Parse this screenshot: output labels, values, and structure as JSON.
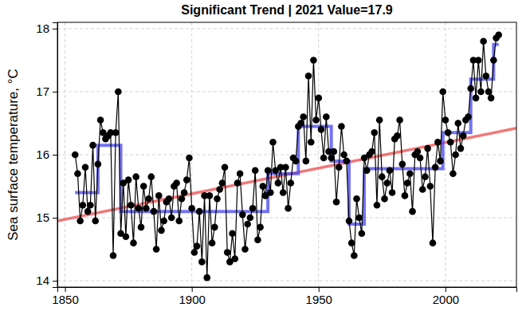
{
  "chart_data": {
    "type": "line",
    "title": "Significant Trend | 2021 Value=17.9",
    "ylabel": "Sea surface temperature, °C",
    "x": [
      1854,
      1855,
      1856,
      1857,
      1858,
      1859,
      1860,
      1861,
      1862,
      1863,
      1864,
      1865,
      1866,
      1867,
      1868,
      1869,
      1870,
      1871,
      1872,
      1873,
      1874,
      1875,
      1876,
      1877,
      1878,
      1879,
      1880,
      1881,
      1882,
      1883,
      1884,
      1885,
      1886,
      1887,
      1888,
      1889,
      1890,
      1891,
      1892,
      1893,
      1894,
      1895,
      1896,
      1897,
      1898,
      1899,
      1900,
      1901,
      1902,
      1903,
      1904,
      1905,
      1906,
      1907,
      1908,
      1909,
      1910,
      1911,
      1912,
      1913,
      1914,
      1915,
      1916,
      1917,
      1918,
      1919,
      1920,
      1921,
      1922,
      1923,
      1924,
      1925,
      1926,
      1927,
      1928,
      1929,
      1930,
      1931,
      1932,
      1933,
      1934,
      1935,
      1936,
      1937,
      1938,
      1939,
      1940,
      1941,
      1942,
      1943,
      1944,
      1945,
      1946,
      1947,
      1948,
      1949,
      1950,
      1951,
      1952,
      1953,
      1954,
      1955,
      1956,
      1957,
      1958,
      1959,
      1960,
      1961,
      1962,
      1963,
      1964,
      1965,
      1966,
      1967,
      1968,
      1969,
      1970,
      1971,
      1972,
      1973,
      1974,
      1975,
      1976,
      1977,
      1978,
      1979,
      1980,
      1981,
      1982,
      1983,
      1984,
      1985,
      1986,
      1987,
      1988,
      1989,
      1990,
      1991,
      1992,
      1993,
      1994,
      1995,
      1996,
      1997,
      1998,
      1999,
      2000,
      2001,
      2002,
      2003,
      2004,
      2005,
      2006,
      2007,
      2008,
      2009,
      2010,
      2011,
      2012,
      2013,
      2014,
      2015,
      2016,
      2017,
      2018,
      2019,
      2020,
      2021
    ],
    "series": [
      {
        "color": "#000000",
        "marker": "circle",
        "line_style": "solid",
        "values": [
          16.0,
          15.7,
          14.95,
          15.2,
          15.8,
          15.1,
          15.2,
          16.15,
          14.95,
          15.85,
          16.55,
          16.35,
          16.25,
          16.3,
          16.35,
          14.4,
          16.35,
          17.0,
          14.75,
          15.55,
          14.7,
          15.6,
          15.2,
          14.6,
          15.65,
          15.15,
          14.85,
          15.5,
          15.15,
          15.3,
          15.65,
          15.1,
          14.5,
          15.35,
          14.8,
          14.95,
          15.25,
          15.3,
          15.0,
          15.5,
          15.55,
          14.95,
          15.3,
          15.4,
          15.6,
          15.95,
          15.15,
          14.45,
          14.55,
          15.1,
          14.3,
          15.35,
          14.05,
          15.35,
          14.6,
          14.85,
          15.3,
          15.45,
          15.55,
          15.8,
          14.45,
          14.3,
          14.75,
          14.35,
          15.55,
          15.7,
          15.05,
          14.5,
          14.9,
          15.0,
          15.15,
          15.75,
          14.65,
          14.85,
          15.5,
          15.35,
          15.75,
          15.4,
          16.2,
          15.75,
          15.55,
          15.8,
          15.4,
          15.8,
          15.15,
          15.55,
          15.95,
          15.9,
          16.45,
          16.5,
          16.6,
          15.9,
          17.25,
          16.2,
          17.5,
          16.55,
          16.9,
          16.4,
          15.95,
          16.6,
          16.05,
          15.95,
          16.05,
          15.25,
          15.8,
          16.45,
          16.0,
          15.9,
          14.95,
          14.6,
          14.4,
          15.3,
          15.0,
          14.75,
          15.95,
          15.75,
          16.0,
          16.05,
          16.35,
          15.2,
          16.55,
          15.65,
          15.3,
          15.55,
          15.75,
          15.4,
          16.25,
          16.3,
          16.55,
          15.85,
          15.35,
          15.55,
          15.7,
          15.1,
          16.0,
          16.05,
          15.95,
          15.45,
          15.65,
          16.1,
          15.5,
          14.6,
          15.8,
          16.2,
          15.9,
          17.0,
          16.55,
          16.35,
          16.2,
          15.7,
          16.0,
          16.5,
          16.1,
          16.3,
          16.55,
          16.6,
          17.05,
          17.5,
          16.9,
          17.5,
          17.0,
          17.8,
          17.25,
          17.0,
          16.9,
          17.5,
          17.85,
          17.9
        ]
      },
      {
        "color": "#4444ee",
        "line_style": "step",
        "values": [
          15.4,
          15.4,
          15.4,
          15.4,
          15.4,
          15.4,
          15.4,
          15.4,
          15.4,
          16.15,
          16.15,
          16.15,
          16.15,
          16.15,
          16.15,
          16.15,
          16.15,
          16.15,
          15.1,
          15.1,
          15.1,
          15.1,
          15.1,
          15.1,
          15.1,
          15.1,
          15.1,
          15.1,
          15.1,
          15.1,
          15.1,
          15.1,
          15.1,
          15.1,
          15.1,
          15.1,
          15.1,
          15.1,
          15.1,
          15.1,
          15.1,
          15.1,
          15.1,
          15.1,
          15.1,
          15.1,
          15.1,
          15.1,
          15.1,
          15.1,
          15.1,
          15.1,
          15.1,
          15.1,
          15.1,
          15.1,
          15.1,
          15.1,
          15.1,
          15.1,
          15.1,
          15.1,
          15.1,
          15.1,
          15.1,
          15.1,
          15.1,
          15.1,
          15.1,
          15.1,
          15.1,
          15.1,
          15.1,
          15.1,
          15.1,
          15.1,
          15.7,
          15.7,
          15.7,
          15.7,
          15.7,
          15.7,
          15.7,
          15.7,
          15.7,
          15.7,
          15.7,
          15.7,
          16.45,
          16.45,
          16.45,
          16.45,
          16.45,
          16.45,
          16.45,
          16.45,
          16.45,
          16.45,
          16.45,
          16.45,
          16.45,
          15.9,
          15.9,
          15.9,
          15.9,
          15.9,
          15.9,
          15.9,
          14.9,
          14.9,
          14.9,
          14.9,
          14.9,
          14.9,
          15.78,
          15.78,
          15.78,
          15.78,
          15.78,
          15.78,
          15.78,
          15.78,
          15.78,
          15.78,
          15.78,
          15.78,
          15.78,
          15.78,
          15.78,
          15.78,
          15.78,
          15.78,
          15.78,
          15.78,
          15.78,
          15.78,
          15.78,
          15.78,
          15.78,
          15.78,
          15.78,
          15.78,
          15.78,
          15.78,
          15.78,
          16.35,
          16.35,
          16.35,
          16.35,
          16.35,
          16.35,
          16.35,
          16.35,
          16.35,
          16.35,
          16.35,
          17.2,
          17.2,
          17.2,
          17.2,
          17.2,
          17.2,
          17.2,
          17.2,
          17.2,
          17.75,
          17.75,
          17.75
        ]
      },
      {
        "color": "#f06060",
        "line_style": "solid",
        "x": [
          1847,
          2028
        ],
        "values": [
          14.95,
          16.42
        ]
      }
    ],
    "xlim": [
      1847,
      2028
    ],
    "ylim": [
      13.9,
      18.1
    ],
    "xticks": [
      1850,
      1900,
      1950,
      2000
    ],
    "yticks": [
      14,
      15,
      16,
      17,
      18
    ],
    "grid": true
  }
}
